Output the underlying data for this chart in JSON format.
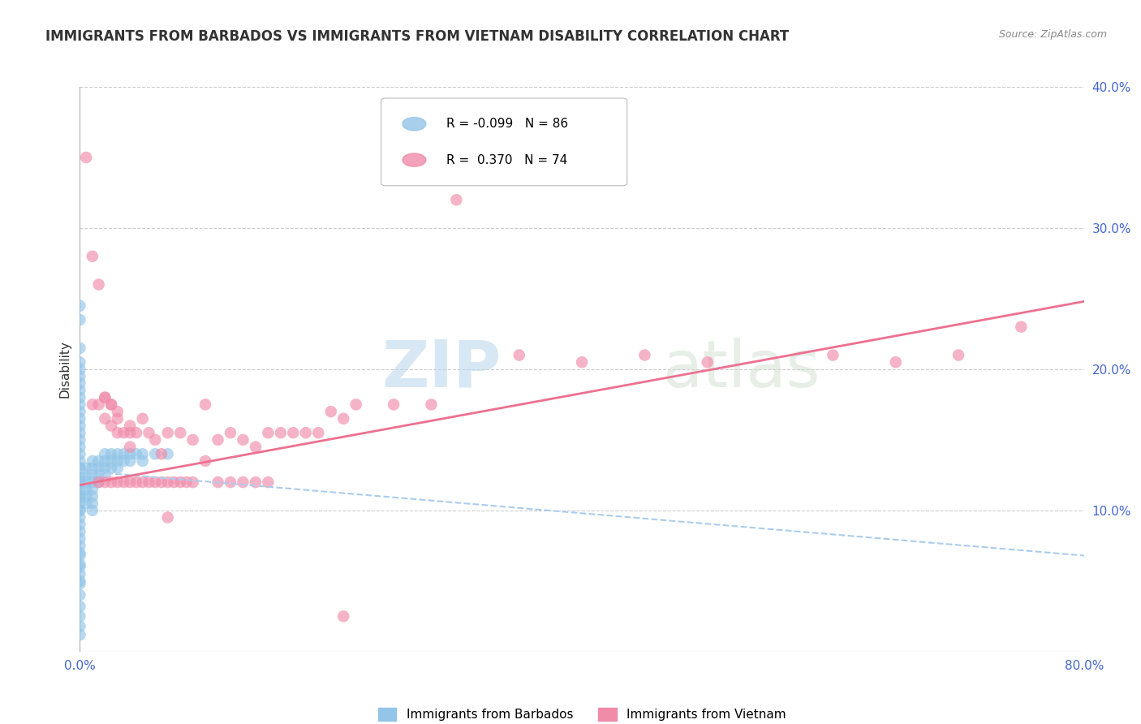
{
  "title": "IMMIGRANTS FROM BARBADOS VS IMMIGRANTS FROM VIETNAM DISABILITY CORRELATION CHART",
  "source": "Source: ZipAtlas.com",
  "ylabel": "Disability",
  "xlim": [
    0.0,
    0.8
  ],
  "ylim": [
    0.0,
    0.4
  ],
  "xtick_vals": [
    0.0,
    0.8
  ],
  "xticklabels": [
    "0.0%",
    "80.0%"
  ],
  "yticks_right": [
    0.1,
    0.2,
    0.3,
    0.4
  ],
  "yticklabels_right": [
    "10.0%",
    "20.0%",
    "30.0%",
    "40.0%"
  ],
  "legend_R1": "-0.099",
  "legend_N1": "86",
  "legend_R2": "0.370",
  "legend_N2": "74",
  "color_barbados": "#92C5E8",
  "color_vietnam": "#F08BAA",
  "color_trendline_barbados": "#AACCEE",
  "color_trendline_vietnam": "#EE7090",
  "color_axis_ticks": "#4466CC",
  "color_title": "#333333",
  "watermark_color": "#D0E4F4",
  "background_color": "#FFFFFF",
  "trendline_barbados_y_start": 0.128,
  "trendline_barbados_y_end": 0.068,
  "trendline_vietnam_y_start": 0.118,
  "trendline_vietnam_y_end": 0.248,
  "barbados_x": [
    0.0,
    0.0,
    0.0,
    0.0,
    0.0,
    0.0,
    0.0,
    0.0,
    0.0,
    0.0,
    0.0,
    0.0,
    0.0,
    0.0,
    0.0,
    0.0,
    0.0,
    0.0,
    0.0,
    0.0,
    0.0,
    0.0,
    0.0,
    0.0,
    0.0,
    0.0,
    0.0,
    0.0,
    0.0,
    0.0,
    0.005,
    0.005,
    0.005,
    0.005,
    0.005,
    0.005,
    0.01,
    0.01,
    0.01,
    0.01,
    0.01,
    0.01,
    0.01,
    0.01,
    0.015,
    0.015,
    0.015,
    0.015,
    0.02,
    0.02,
    0.02,
    0.02,
    0.025,
    0.025,
    0.025,
    0.03,
    0.03,
    0.03,
    0.035,
    0.035,
    0.04,
    0.04,
    0.045,
    0.05,
    0.05,
    0.06,
    0.07,
    0.0,
    0.0,
    0.0,
    0.0,
    0.0,
    0.0,
    0.0,
    0.0,
    0.0,
    0.0,
    0.0,
    0.0,
    0.0,
    0.0,
    0.0,
    0.0
  ],
  "barbados_y": [
    0.245,
    0.235,
    0.215,
    0.205,
    0.195,
    0.185,
    0.175,
    0.165,
    0.155,
    0.145,
    0.135,
    0.13,
    0.125,
    0.12,
    0.115,
    0.11,
    0.105,
    0.1,
    0.095,
    0.085,
    0.075,
    0.068,
    0.062,
    0.055,
    0.048,
    0.04,
    0.032,
    0.025,
    0.018,
    0.012,
    0.13,
    0.125,
    0.12,
    0.115,
    0.11,
    0.105,
    0.135,
    0.13,
    0.125,
    0.12,
    0.115,
    0.11,
    0.105,
    0.1,
    0.135,
    0.13,
    0.125,
    0.12,
    0.14,
    0.135,
    0.13,
    0.125,
    0.14,
    0.135,
    0.13,
    0.14,
    0.135,
    0.13,
    0.14,
    0.135,
    0.14,
    0.135,
    0.14,
    0.14,
    0.135,
    0.14,
    0.14,
    0.2,
    0.19,
    0.18,
    0.17,
    0.16,
    0.15,
    0.14,
    0.13,
    0.12,
    0.11,
    0.1,
    0.09,
    0.08,
    0.07,
    0.06,
    0.05
  ],
  "vietnam_x": [
    0.005,
    0.01,
    0.01,
    0.015,
    0.015,
    0.02,
    0.02,
    0.02,
    0.025,
    0.025,
    0.025,
    0.03,
    0.03,
    0.03,
    0.035,
    0.035,
    0.04,
    0.04,
    0.04,
    0.045,
    0.045,
    0.05,
    0.05,
    0.055,
    0.055,
    0.06,
    0.06,
    0.065,
    0.065,
    0.07,
    0.07,
    0.075,
    0.08,
    0.08,
    0.085,
    0.09,
    0.09,
    0.1,
    0.1,
    0.11,
    0.11,
    0.12,
    0.12,
    0.13,
    0.13,
    0.14,
    0.14,
    0.15,
    0.15,
    0.16,
    0.17,
    0.18,
    0.19,
    0.2,
    0.21,
    0.22,
    0.25,
    0.28,
    0.3,
    0.35,
    0.4,
    0.45,
    0.5,
    0.6,
    0.65,
    0.7,
    0.75,
    0.015,
    0.02,
    0.025,
    0.03,
    0.04,
    0.07,
    0.21
  ],
  "vietnam_y": [
    0.35,
    0.28,
    0.175,
    0.175,
    0.12,
    0.18,
    0.165,
    0.12,
    0.175,
    0.16,
    0.12,
    0.165,
    0.155,
    0.12,
    0.155,
    0.12,
    0.16,
    0.145,
    0.12,
    0.155,
    0.12,
    0.165,
    0.12,
    0.155,
    0.12,
    0.15,
    0.12,
    0.14,
    0.12,
    0.155,
    0.12,
    0.12,
    0.155,
    0.12,
    0.12,
    0.15,
    0.12,
    0.175,
    0.135,
    0.15,
    0.12,
    0.155,
    0.12,
    0.15,
    0.12,
    0.145,
    0.12,
    0.155,
    0.12,
    0.155,
    0.155,
    0.155,
    0.155,
    0.17,
    0.165,
    0.175,
    0.175,
    0.175,
    0.32,
    0.21,
    0.205,
    0.21,
    0.205,
    0.21,
    0.205,
    0.21,
    0.23,
    0.26,
    0.18,
    0.175,
    0.17,
    0.155,
    0.095,
    0.025
  ]
}
